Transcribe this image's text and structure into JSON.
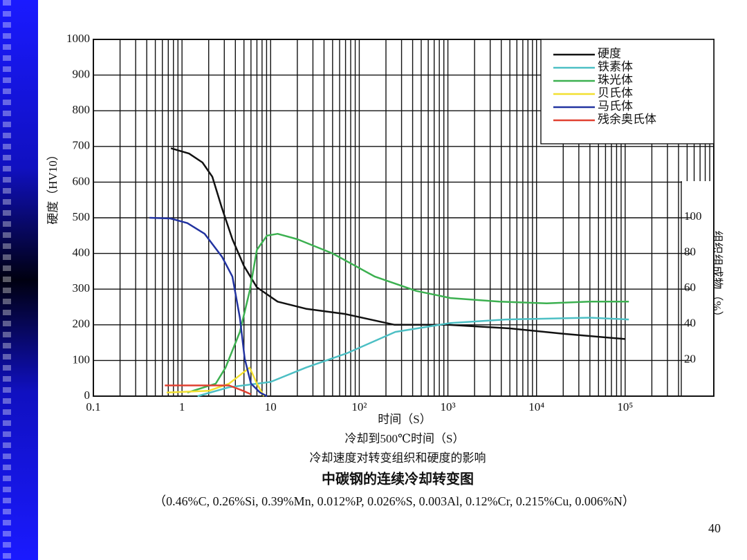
{
  "page_number": "40",
  "chart_data": {
    "type": "line",
    "title": "中碳钢的连续冷却转变图",
    "subtitle": "冷却速度对转变组织和硬度的影响",
    "x_label": "时间（S）",
    "x_label_2": "冷却到500℃时间（S）",
    "y_label": "硬度（HV10）",
    "y2_label": "组织组成物（%）",
    "note": "（0.46%C, 0.26%Si, 0.39%Mn, 0.012%P, 0.026%S, 0.003Al, 0.12%Cr, 0.215%Cu, 0.006%N）",
    "x_log": true,
    "grid": true,
    "legend": "upper right",
    "xlim": [
      0.1,
      1000000
    ],
    "xticks": [
      0.1,
      1,
      10,
      {
        "value": 100,
        "label": "10²"
      },
      {
        "value": 1000,
        "label": "10³"
      },
      {
        "value": 10000,
        "label": "10⁴"
      },
      {
        "value": 100000,
        "label": "10⁵"
      }
    ],
    "ylim": [
      0,
      1000
    ],
    "yticks": [
      0,
      100,
      200,
      300,
      400,
      500,
      600,
      700,
      800,
      900,
      1000
    ],
    "y2lim": [
      0,
      200
    ],
    "y2ticks": [
      20,
      40,
      60,
      80,
      100
    ],
    "series": [
      {
        "name": "硬度",
        "color": "#111111",
        "x": [
          0.75,
          1.2,
          1.7,
          2.2,
          2.8,
          3.7,
          5,
          7,
          12,
          25,
          70,
          250,
          1000,
          5000,
          20000,
          100000
        ],
        "values": [
          695,
          680,
          655,
          615,
          530,
          440,
          365,
          305,
          265,
          245,
          230,
          200,
          200,
          190,
          175,
          160
        ]
      },
      {
        "name": "铁素体",
        "color": "#4cbfc4",
        "axis": "y2",
        "x": [
          1.5,
          3.4,
          10,
          25,
          72,
          255,
          1070,
          4500,
          40000,
          110000
        ],
        "values": [
          0,
          5,
          8,
          16,
          24,
          36,
          41,
          43,
          44,
          43
        ]
      },
      {
        "name": "珠光体",
        "color": "#3cb050",
        "axis": "y2",
        "x": [
          1.15,
          2.4,
          3.1,
          4.5,
          5.8,
          7,
          9.1,
          12,
          20,
          50,
          150,
          440,
          1070,
          3800,
          13000,
          40000,
          110000
        ],
        "values": [
          2,
          7,
          16,
          36,
          59,
          82,
          90,
          91,
          88,
          80,
          67,
          59,
          55,
          53,
          52,
          53,
          53
        ]
      },
      {
        "name": "贝氏体",
        "color": "#f2e030",
        "axis": "y2",
        "x": [
          0.67,
          2,
          3.4,
          5.8,
          7,
          8.4
        ],
        "values": [
          2,
          3,
          7,
          16,
          7,
          0
        ]
      },
      {
        "name": "马氏体",
        "color": "#2233a0",
        "axis": "y2",
        "x": [
          0.43,
          0.74,
          1.15,
          1.8,
          2.84,
          3.7,
          4.5,
          5.1,
          6,
          7.6,
          9.1
        ],
        "values": [
          100,
          99.6,
          97,
          91,
          78,
          67,
          44,
          21,
          7,
          2,
          0
        ]
      },
      {
        "name": "残余奥氏体",
        "color": "#e04030",
        "axis": "y2",
        "x": [
          0.64,
          3.4,
          4.9,
          6
        ],
        "values": [
          6,
          6,
          3,
          1
        ]
      }
    ]
  }
}
